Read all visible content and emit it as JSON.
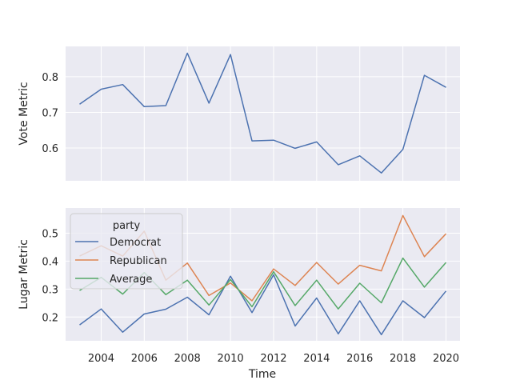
{
  "chart_data": [
    {
      "type": "line",
      "xlabel": "",
      "ylabel": "Vote Metric",
      "xlim": [
        2002.35,
        2020.65
      ],
      "ylim": [
        0.508,
        0.885
      ],
      "yticks": [
        0.6,
        0.7,
        0.8
      ],
      "ytick_labels": [
        "0.6",
        "0.7",
        "0.8"
      ],
      "grid": true,
      "x": [
        2003,
        2004,
        2005,
        2006,
        2007,
        2008,
        2009,
        2010,
        2011,
        2012,
        2013,
        2014,
        2015,
        2016,
        2017,
        2018,
        2019,
        2020
      ],
      "series": [
        {
          "values": [
            0.723,
            0.765,
            0.778,
            0.716,
            0.719,
            0.866,
            0.726,
            0.862,
            0.62,
            0.622,
            0.599,
            0.617,
            0.553,
            0.578,
            0.53,
            0.596,
            0.804,
            0.77
          ],
          "color": "#4c72b0"
        }
      ]
    },
    {
      "type": "line",
      "xlabel": "Time",
      "ylabel": "Lugar Metric",
      "xlim": [
        2002.35,
        2020.65
      ],
      "ylim": [
        0.115,
        0.59
      ],
      "xticks": [
        2004,
        2006,
        2008,
        2010,
        2012,
        2014,
        2016,
        2018,
        2020
      ],
      "xtick_labels": [
        "2004",
        "2006",
        "2008",
        "2010",
        "2012",
        "2014",
        "2016",
        "2018",
        "2020"
      ],
      "yticks": [
        0.2,
        0.3,
        0.4,
        0.5
      ],
      "ytick_labels": [
        "0.2",
        "0.3",
        "0.4",
        "0.5"
      ],
      "grid": true,
      "legend": {
        "title": "party",
        "placement": "top-left"
      },
      "x": [
        2003,
        2004,
        2005,
        2006,
        2007,
        2008,
        2009,
        2010,
        2011,
        2012,
        2013,
        2014,
        2015,
        2016,
        2017,
        2018,
        2019,
        2020
      ],
      "series": [
        {
          "name": "Democrat",
          "color": "#4c72b0",
          "values": [
            0.172,
            0.229,
            0.146,
            0.211,
            0.228,
            0.271,
            0.208,
            0.346,
            0.216,
            0.351,
            0.168,
            0.268,
            0.14,
            0.258,
            0.137,
            0.258,
            0.198,
            0.293
          ]
        },
        {
          "name": "Republican",
          "color": "#dd8452",
          "values": [
            0.418,
            0.455,
            0.418,
            0.507,
            0.332,
            0.393,
            0.277,
            0.322,
            0.258,
            0.372,
            0.313,
            0.395,
            0.318,
            0.385,
            0.365,
            0.563,
            0.416,
            0.498
          ]
        },
        {
          "name": "Average",
          "color": "#55a868",
          "values": [
            0.295,
            0.342,
            0.282,
            0.359,
            0.28,
            0.332,
            0.243,
            0.334,
            0.237,
            0.362,
            0.241,
            0.332,
            0.229,
            0.321,
            0.251,
            0.411,
            0.307,
            0.395
          ]
        }
      ]
    }
  ]
}
